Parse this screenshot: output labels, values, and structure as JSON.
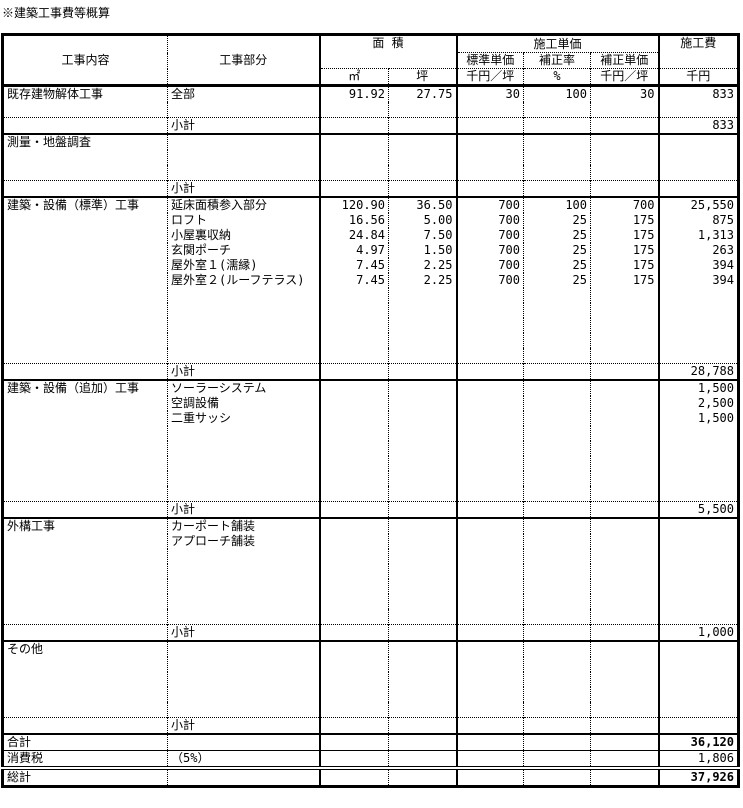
{
  "title": "※建築工事費等概算",
  "header": {
    "col_content": "工事内容",
    "col_part": "工事部分",
    "area": "面 積",
    "unit_price": "施工単価",
    "cost": "施工費",
    "std_price": "標準単価",
    "correction_rate": "補正率",
    "corrected_price": "補正単価",
    "unit_m2": "㎡",
    "unit_tsubo": "坪",
    "unit_std": "千円／坪",
    "unit_rate": "%",
    "unit_corr": "千円／坪",
    "unit_cost": "千円"
  },
  "sections": [
    {
      "name": "既存建物解体工事",
      "items": [
        {
          "part": "全部",
          "m2": "91.92",
          "tsubo": "27.75",
          "std": "30",
          "rate": "100",
          "corr": "30",
          "cost": "833"
        }
      ],
      "subtotal_label": "小計",
      "subtotal": "833"
    },
    {
      "name": "測量・地盤調査",
      "items": [],
      "subtotal_label": "小計",
      "subtotal": ""
    },
    {
      "name": "建築・設備（標準）工事",
      "items": [
        {
          "part": "延床面積参入部分",
          "m2": "120.90",
          "tsubo": "36.50",
          "std": "700",
          "rate": "100",
          "corr": "700",
          "cost": "25,550"
        },
        {
          "part": "ロフト",
          "m2": "16.56",
          "tsubo": "5.00",
          "std": "700",
          "rate": "25",
          "corr": "175",
          "cost": "875"
        },
        {
          "part": "小屋裏収納",
          "m2": "24.84",
          "tsubo": "7.50",
          "std": "700",
          "rate": "25",
          "corr": "175",
          "cost": "1,313"
        },
        {
          "part": "玄関ポーチ",
          "m2": "4.97",
          "tsubo": "1.50",
          "std": "700",
          "rate": "25",
          "corr": "175",
          "cost": "263"
        },
        {
          "part": "屋外室１(濡縁)",
          "m2": "7.45",
          "tsubo": "2.25",
          "std": "700",
          "rate": "25",
          "corr": "175",
          "cost": "394"
        },
        {
          "part": "屋外室２(ルーフテラス)",
          "m2": "7.45",
          "tsubo": "2.25",
          "std": "700",
          "rate": "25",
          "corr": "175",
          "cost": "394"
        }
      ],
      "subtotal_label": "小計",
      "subtotal": "28,788"
    },
    {
      "name": "建築・設備（追加）工事",
      "items": [
        {
          "part": "ソーラーシステム",
          "cost": "1,500"
        },
        {
          "part": "空調設備",
          "cost": "2,500"
        },
        {
          "part": "二重サッシ",
          "cost": "1,500"
        }
      ],
      "subtotal_label": "小計",
      "subtotal": "5,500"
    },
    {
      "name": "外構工事",
      "items": [
        {
          "part": "カーポート舗装"
        },
        {
          "part": "アプローチ舗装"
        }
      ],
      "subtotal_label": "小計",
      "subtotal": "1,000"
    },
    {
      "name": "その他",
      "items": [],
      "subtotal_label": "小計",
      "subtotal": ""
    }
  ],
  "totals": {
    "sum_label": "合計",
    "sum": "36,120",
    "tax_label": "消費税",
    "tax_rate": "（5%）",
    "tax": "1,806",
    "grand_label": "総計",
    "grand": "37,926"
  }
}
